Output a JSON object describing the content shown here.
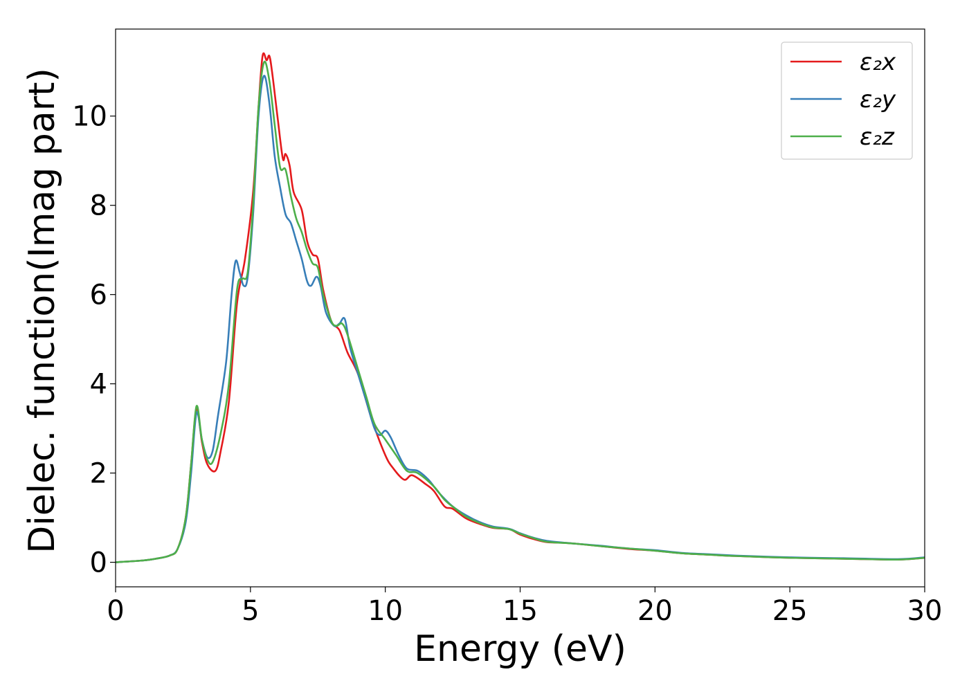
{
  "chart_data": {
    "type": "line",
    "xlabel": "Energy (eV)",
    "ylabel": "Dielec. function(Imag part)",
    "xlim": [
      0,
      30
    ],
    "ylim": [
      -0.55,
      11.95
    ],
    "xticks": [
      0,
      5,
      10,
      15,
      20,
      25,
      30
    ],
    "yticks": [
      0,
      2,
      4,
      6,
      8,
      10
    ],
    "grid": false,
    "legend_position": "top-right",
    "series": [
      {
        "name": "ε₂x",
        "color": "#e41a1c",
        "points": [
          [
            0,
            0
          ],
          [
            1,
            0.04
          ],
          [
            1.5,
            0.08
          ],
          [
            2,
            0.15
          ],
          [
            2.3,
            0.3
          ],
          [
            2.6,
            1.0
          ],
          [
            2.8,
            2.2
          ],
          [
            3.0,
            3.45
          ],
          [
            3.2,
            2.7
          ],
          [
            3.4,
            2.2
          ],
          [
            3.7,
            2.05
          ],
          [
            3.9,
            2.5
          ],
          [
            4.2,
            3.6
          ],
          [
            4.5,
            5.8
          ],
          [
            4.8,
            6.8
          ],
          [
            5.1,
            8.3
          ],
          [
            5.3,
            10.2
          ],
          [
            5.45,
            11.35
          ],
          [
            5.6,
            11.25
          ],
          [
            5.7,
            11.35
          ],
          [
            5.8,
            11.0
          ],
          [
            6.0,
            10.0
          ],
          [
            6.2,
            9.05
          ],
          [
            6.3,
            9.15
          ],
          [
            6.45,
            8.9
          ],
          [
            6.6,
            8.3
          ],
          [
            6.9,
            7.9
          ],
          [
            7.1,
            7.2
          ],
          [
            7.3,
            6.9
          ],
          [
            7.5,
            6.8
          ],
          [
            7.7,
            6.1
          ],
          [
            8.0,
            5.4
          ],
          [
            8.3,
            5.2
          ],
          [
            8.6,
            4.7
          ],
          [
            9.0,
            4.2
          ],
          [
            9.5,
            3.2
          ],
          [
            10.0,
            2.4
          ],
          [
            10.3,
            2.1
          ],
          [
            10.7,
            1.85
          ],
          [
            11.0,
            1.95
          ],
          [
            11.5,
            1.75
          ],
          [
            11.8,
            1.6
          ],
          [
            12.2,
            1.25
          ],
          [
            12.5,
            1.2
          ],
          [
            13.0,
            0.98
          ],
          [
            13.5,
            0.86
          ],
          [
            14.0,
            0.77
          ],
          [
            14.6,
            0.74
          ],
          [
            15.0,
            0.62
          ],
          [
            15.5,
            0.52
          ],
          [
            16.0,
            0.45
          ],
          [
            16.5,
            0.44
          ],
          [
            17.0,
            0.42
          ],
          [
            18.0,
            0.36
          ],
          [
            19.0,
            0.3
          ],
          [
            20.0,
            0.26
          ],
          [
            21.0,
            0.2
          ],
          [
            22.0,
            0.17
          ],
          [
            23.0,
            0.14
          ],
          [
            25.0,
            0.1
          ],
          [
            27.0,
            0.08
          ],
          [
            29.0,
            0.06
          ],
          [
            30.0,
            0.1
          ]
        ]
      },
      {
        "name": "ε₂y",
        "color": "#377eb8",
        "points": [
          [
            0,
            0
          ],
          [
            1,
            0.04
          ],
          [
            1.5,
            0.08
          ],
          [
            2,
            0.15
          ],
          [
            2.3,
            0.3
          ],
          [
            2.6,
            0.9
          ],
          [
            2.8,
            2.0
          ],
          [
            3.0,
            3.35
          ],
          [
            3.2,
            2.75
          ],
          [
            3.4,
            2.35
          ],
          [
            3.6,
            2.5
          ],
          [
            3.8,
            3.3
          ],
          [
            4.1,
            4.5
          ],
          [
            4.3,
            6.0
          ],
          [
            4.45,
            6.75
          ],
          [
            4.6,
            6.5
          ],
          [
            4.75,
            6.2
          ],
          [
            4.9,
            6.4
          ],
          [
            5.1,
            7.8
          ],
          [
            5.3,
            10.0
          ],
          [
            5.5,
            10.9
          ],
          [
            5.7,
            10.3
          ],
          [
            5.9,
            9.1
          ],
          [
            6.1,
            8.4
          ],
          [
            6.3,
            7.8
          ],
          [
            6.5,
            7.6
          ],
          [
            6.7,
            7.2
          ],
          [
            6.9,
            6.8
          ],
          [
            7.1,
            6.3
          ],
          [
            7.25,
            6.2
          ],
          [
            7.45,
            6.4
          ],
          [
            7.6,
            6.2
          ],
          [
            7.8,
            5.6
          ],
          [
            8.1,
            5.3
          ],
          [
            8.3,
            5.35
          ],
          [
            8.5,
            5.45
          ],
          [
            8.7,
            4.8
          ],
          [
            9.0,
            4.2
          ],
          [
            9.3,
            3.6
          ],
          [
            9.6,
            3.0
          ],
          [
            9.8,
            2.85
          ],
          [
            10.0,
            2.95
          ],
          [
            10.2,
            2.8
          ],
          [
            10.5,
            2.4
          ],
          [
            10.8,
            2.1
          ],
          [
            11.2,
            2.05
          ],
          [
            11.6,
            1.85
          ],
          [
            12.0,
            1.55
          ],
          [
            12.5,
            1.25
          ],
          [
            13.0,
            1.05
          ],
          [
            13.5,
            0.9
          ],
          [
            14.0,
            0.8
          ],
          [
            14.6,
            0.75
          ],
          [
            15.0,
            0.65
          ],
          [
            15.5,
            0.55
          ],
          [
            16.0,
            0.48
          ],
          [
            17.0,
            0.42
          ],
          [
            18.0,
            0.37
          ],
          [
            19.0,
            0.31
          ],
          [
            20.0,
            0.27
          ],
          [
            21.0,
            0.21
          ],
          [
            22.0,
            0.18
          ],
          [
            23.0,
            0.15
          ],
          [
            25.0,
            0.11
          ],
          [
            27.0,
            0.09
          ],
          [
            29.0,
            0.07
          ],
          [
            30.0,
            0.11
          ]
        ]
      },
      {
        "name": "ε₂z",
        "color": "#4daf4a",
        "points": [
          [
            0,
            0
          ],
          [
            1,
            0.04
          ],
          [
            1.5,
            0.08
          ],
          [
            2,
            0.15
          ],
          [
            2.3,
            0.3
          ],
          [
            2.6,
            1.0
          ],
          [
            2.8,
            2.2
          ],
          [
            3.0,
            3.5
          ],
          [
            3.2,
            2.75
          ],
          [
            3.4,
            2.3
          ],
          [
            3.6,
            2.25
          ],
          [
            3.9,
            2.9
          ],
          [
            4.2,
            4.0
          ],
          [
            4.5,
            6.1
          ],
          [
            4.7,
            6.35
          ],
          [
            4.9,
            6.5
          ],
          [
            5.1,
            8.0
          ],
          [
            5.3,
            10.2
          ],
          [
            5.5,
            11.2
          ],
          [
            5.7,
            10.8
          ],
          [
            5.9,
            9.8
          ],
          [
            6.1,
            8.85
          ],
          [
            6.3,
            8.8
          ],
          [
            6.5,
            8.2
          ],
          [
            6.7,
            7.7
          ],
          [
            6.9,
            7.4
          ],
          [
            7.1,
            7.0
          ],
          [
            7.3,
            6.7
          ],
          [
            7.5,
            6.6
          ],
          [
            7.7,
            6.0
          ],
          [
            8.0,
            5.4
          ],
          [
            8.2,
            5.3
          ],
          [
            8.4,
            5.35
          ],
          [
            8.6,
            5.1
          ],
          [
            9.0,
            4.3
          ],
          [
            9.3,
            3.7
          ],
          [
            9.6,
            3.1
          ],
          [
            10.0,
            2.75
          ],
          [
            10.4,
            2.4
          ],
          [
            10.8,
            2.05
          ],
          [
            11.2,
            2.0
          ],
          [
            11.8,
            1.7
          ],
          [
            12.2,
            1.4
          ],
          [
            12.6,
            1.2
          ],
          [
            13.0,
            1.02
          ],
          [
            13.5,
            0.88
          ],
          [
            14.0,
            0.78
          ],
          [
            14.6,
            0.74
          ],
          [
            15.0,
            0.64
          ],
          [
            15.5,
            0.54
          ],
          [
            16.0,
            0.46
          ],
          [
            17.0,
            0.42
          ],
          [
            18.0,
            0.36
          ],
          [
            19.0,
            0.31
          ],
          [
            20.0,
            0.26
          ],
          [
            21.0,
            0.2
          ],
          [
            22.0,
            0.17
          ],
          [
            23.0,
            0.14
          ],
          [
            25.0,
            0.1
          ],
          [
            27.0,
            0.08
          ],
          [
            29.0,
            0.06
          ],
          [
            30.0,
            0.1
          ]
        ]
      }
    ]
  }
}
